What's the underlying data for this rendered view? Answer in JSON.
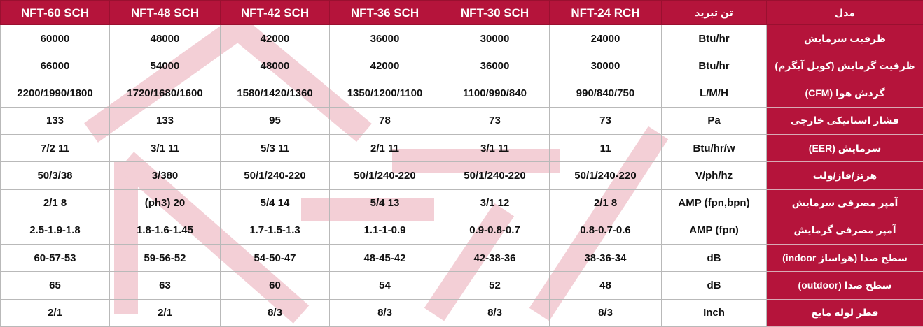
{
  "header": {
    "models": [
      "NFT-60 SCH",
      "NFT-48 SCH",
      "NFT-42 SCH",
      "NFT-36 SCH",
      "NFT-30 SCH",
      "NFT-24 RCH"
    ],
    "unit_col": "تن تبرید",
    "label_col": "مدل"
  },
  "rows": [
    {
      "label": "ظرفیت سرمایش",
      "unit": "Btu/hr",
      "values": [
        "60000",
        "48000",
        "42000",
        "36000",
        "30000",
        "24000"
      ]
    },
    {
      "label": "ظرفیت گرمایش (کویل آبگرم)",
      "unit": "Btu/hr",
      "values": [
        "66000",
        "54000",
        "48000",
        "42000",
        "36000",
        "30000"
      ]
    },
    {
      "label": "گردش هوا (CFM)",
      "unit": "L/M/H",
      "values": [
        "2200/1990/1800",
        "1720/1680/1600",
        "1580/1420/1360",
        "1350/1200/1100",
        "1100/990/840",
        "990/840/750"
      ]
    },
    {
      "label": "فشار استاتیکی خارجی",
      "unit": "Pa",
      "values": [
        "133",
        "133",
        "95",
        "78",
        "73",
        "73"
      ]
    },
    {
      "label": "سرمایش (EER)",
      "unit": "Btu/hr/w",
      "values": [
        "7/2 11",
        "3/1 11",
        "5/3 11",
        "2/1 11",
        "3/1 11",
        "11"
      ]
    },
    {
      "label": "هرتز/فاز/ولت",
      "unit": "V/ph/hz",
      "values": [
        "50/3/38",
        "3/380",
        "50/1/240-220",
        "50/1/240-220",
        "50/1/240-220",
        "50/1/240-220"
      ]
    },
    {
      "label": "آمپر مصرفی سرمایش",
      "unit": "AMP (fpn,bpn)",
      "values": [
        "2/1 8",
        "(ph3) 20",
        "5/4 14",
        "5/4 13",
        "3/1 12",
        "2/1 8"
      ]
    },
    {
      "label": "آمپر مصرفی گرمایش",
      "unit": "AMP (fpn)",
      "values": [
        "2.5-1.9-1.8",
        "1.8-1.6-1.45",
        "1.7-1.5-1.3",
        "1.1-1-0.9",
        "0.9-0.8-0.7",
        "0.8-0.7-0.6"
      ]
    },
    {
      "label": "سطح صدا (هواساز indoor)",
      "unit": "dB",
      "values": [
        "60-57-53",
        "59-56-52",
        "54-50-47",
        "48-45-42",
        "42-38-36",
        "38-36-34"
      ]
    },
    {
      "label": "سطح صدا (outdoor)",
      "unit": "dB",
      "values": [
        "65",
        "63",
        "60",
        "54",
        "52",
        "48"
      ]
    },
    {
      "label": "قطر لوله مایع",
      "unit": "Inch",
      "values": [
        "2/1",
        "2/1",
        "8/3",
        "8/3",
        "8/3",
        "8/3"
      ]
    }
  ],
  "colors": {
    "accent": "#b5143b",
    "watermark": "#f3cfd6"
  }
}
